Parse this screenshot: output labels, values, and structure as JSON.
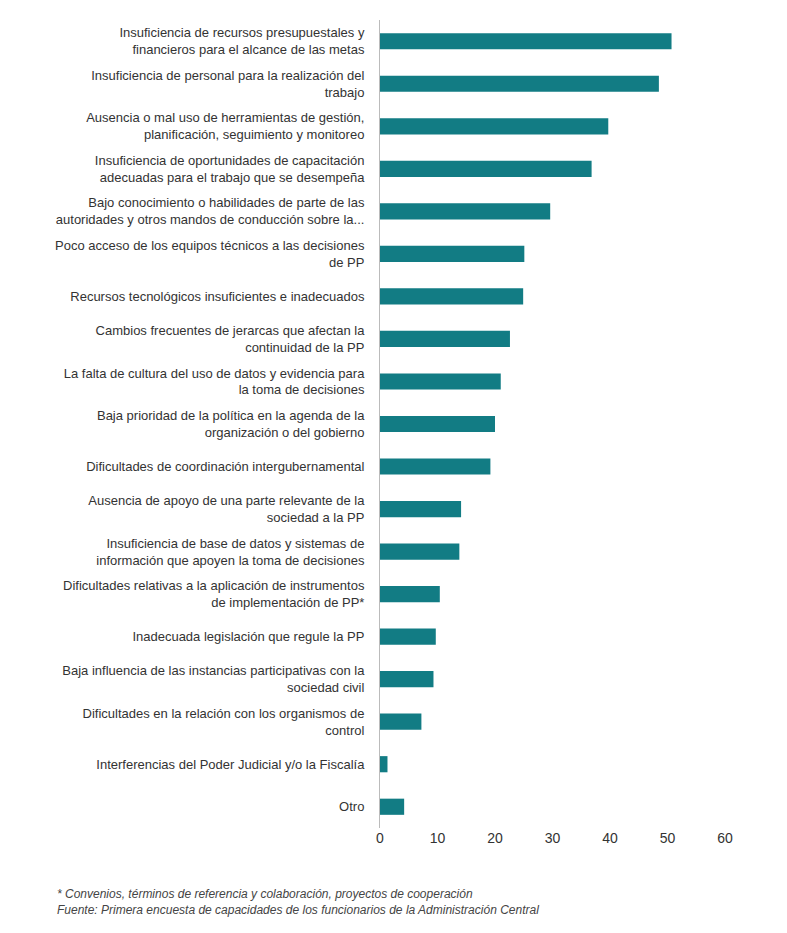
{
  "chart_data": {
    "type": "bar",
    "orientation": "horizontal",
    "color": "#127c84",
    "grid": false,
    "categories": [
      "Insuficiencia de recursos presupuestales y\nfinancieros para el alcance de las metas",
      "Insuficiencia de personal para la realización del\ntrabajo",
      "Ausencia o mal uso de herramientas de gestión,\nplanificación, seguimiento y monitoreo",
      "Insuficiencia de oportunidades de capacitación\nadecuadas para el trabajo que se desempeña",
      "Bajo conocimiento o habilidades de parte de las\nautoridades y otros mandos de conducción sobre la...",
      "Poco acceso de los equipos técnicos a las decisiones\nde PP",
      "Recursos tecnológicos insuficientes e inadecuados",
      "Cambios frecuentes de jerarcas que afectan la\ncontinuidad de la PP",
      "La falta de cultura del uso de datos y evidencia para\nla toma de decisiones",
      "Baja prioridad de la política en la agenda de la\norganización o del gobierno",
      "Dificultades de coordinación intergubernamental",
      "Ausencia de apoyo de una parte relevante de la\nsociedad a la PP",
      "Insuficiencia de base de datos y sistemas de\ninformación que apoyen la toma de decisiones",
      "Dificultades relativas a la aplicación de instrumentos\nde implementación de PP*",
      "Inadecuada legislación que regule la PP",
      "Baja influencia de las instancias participativas con la\nsociedad civil",
      "Dificultades en la relación con los organismos de\ncontrol",
      "Interferencias del Poder Judicial y/o la Fiscalía",
      "Otro"
    ],
    "values": [
      50.7,
      48.5,
      39.7,
      36.8,
      29.6,
      25.1,
      24.9,
      22.6,
      21.0,
      20.0,
      19.2,
      14.1,
      13.8,
      10.4,
      9.7,
      9.3,
      7.2,
      1.3,
      4.2
    ],
    "xlim": [
      0,
      60
    ],
    "xticks": [
      0,
      10,
      20,
      30,
      40,
      50,
      60
    ],
    "annotations": [
      "* Convenios, términos de referencia y colaboración, proyectos de cooperación",
      "Fuente: Primera encuesta de capacidades de los funcionarios de la Administración Central"
    ]
  }
}
